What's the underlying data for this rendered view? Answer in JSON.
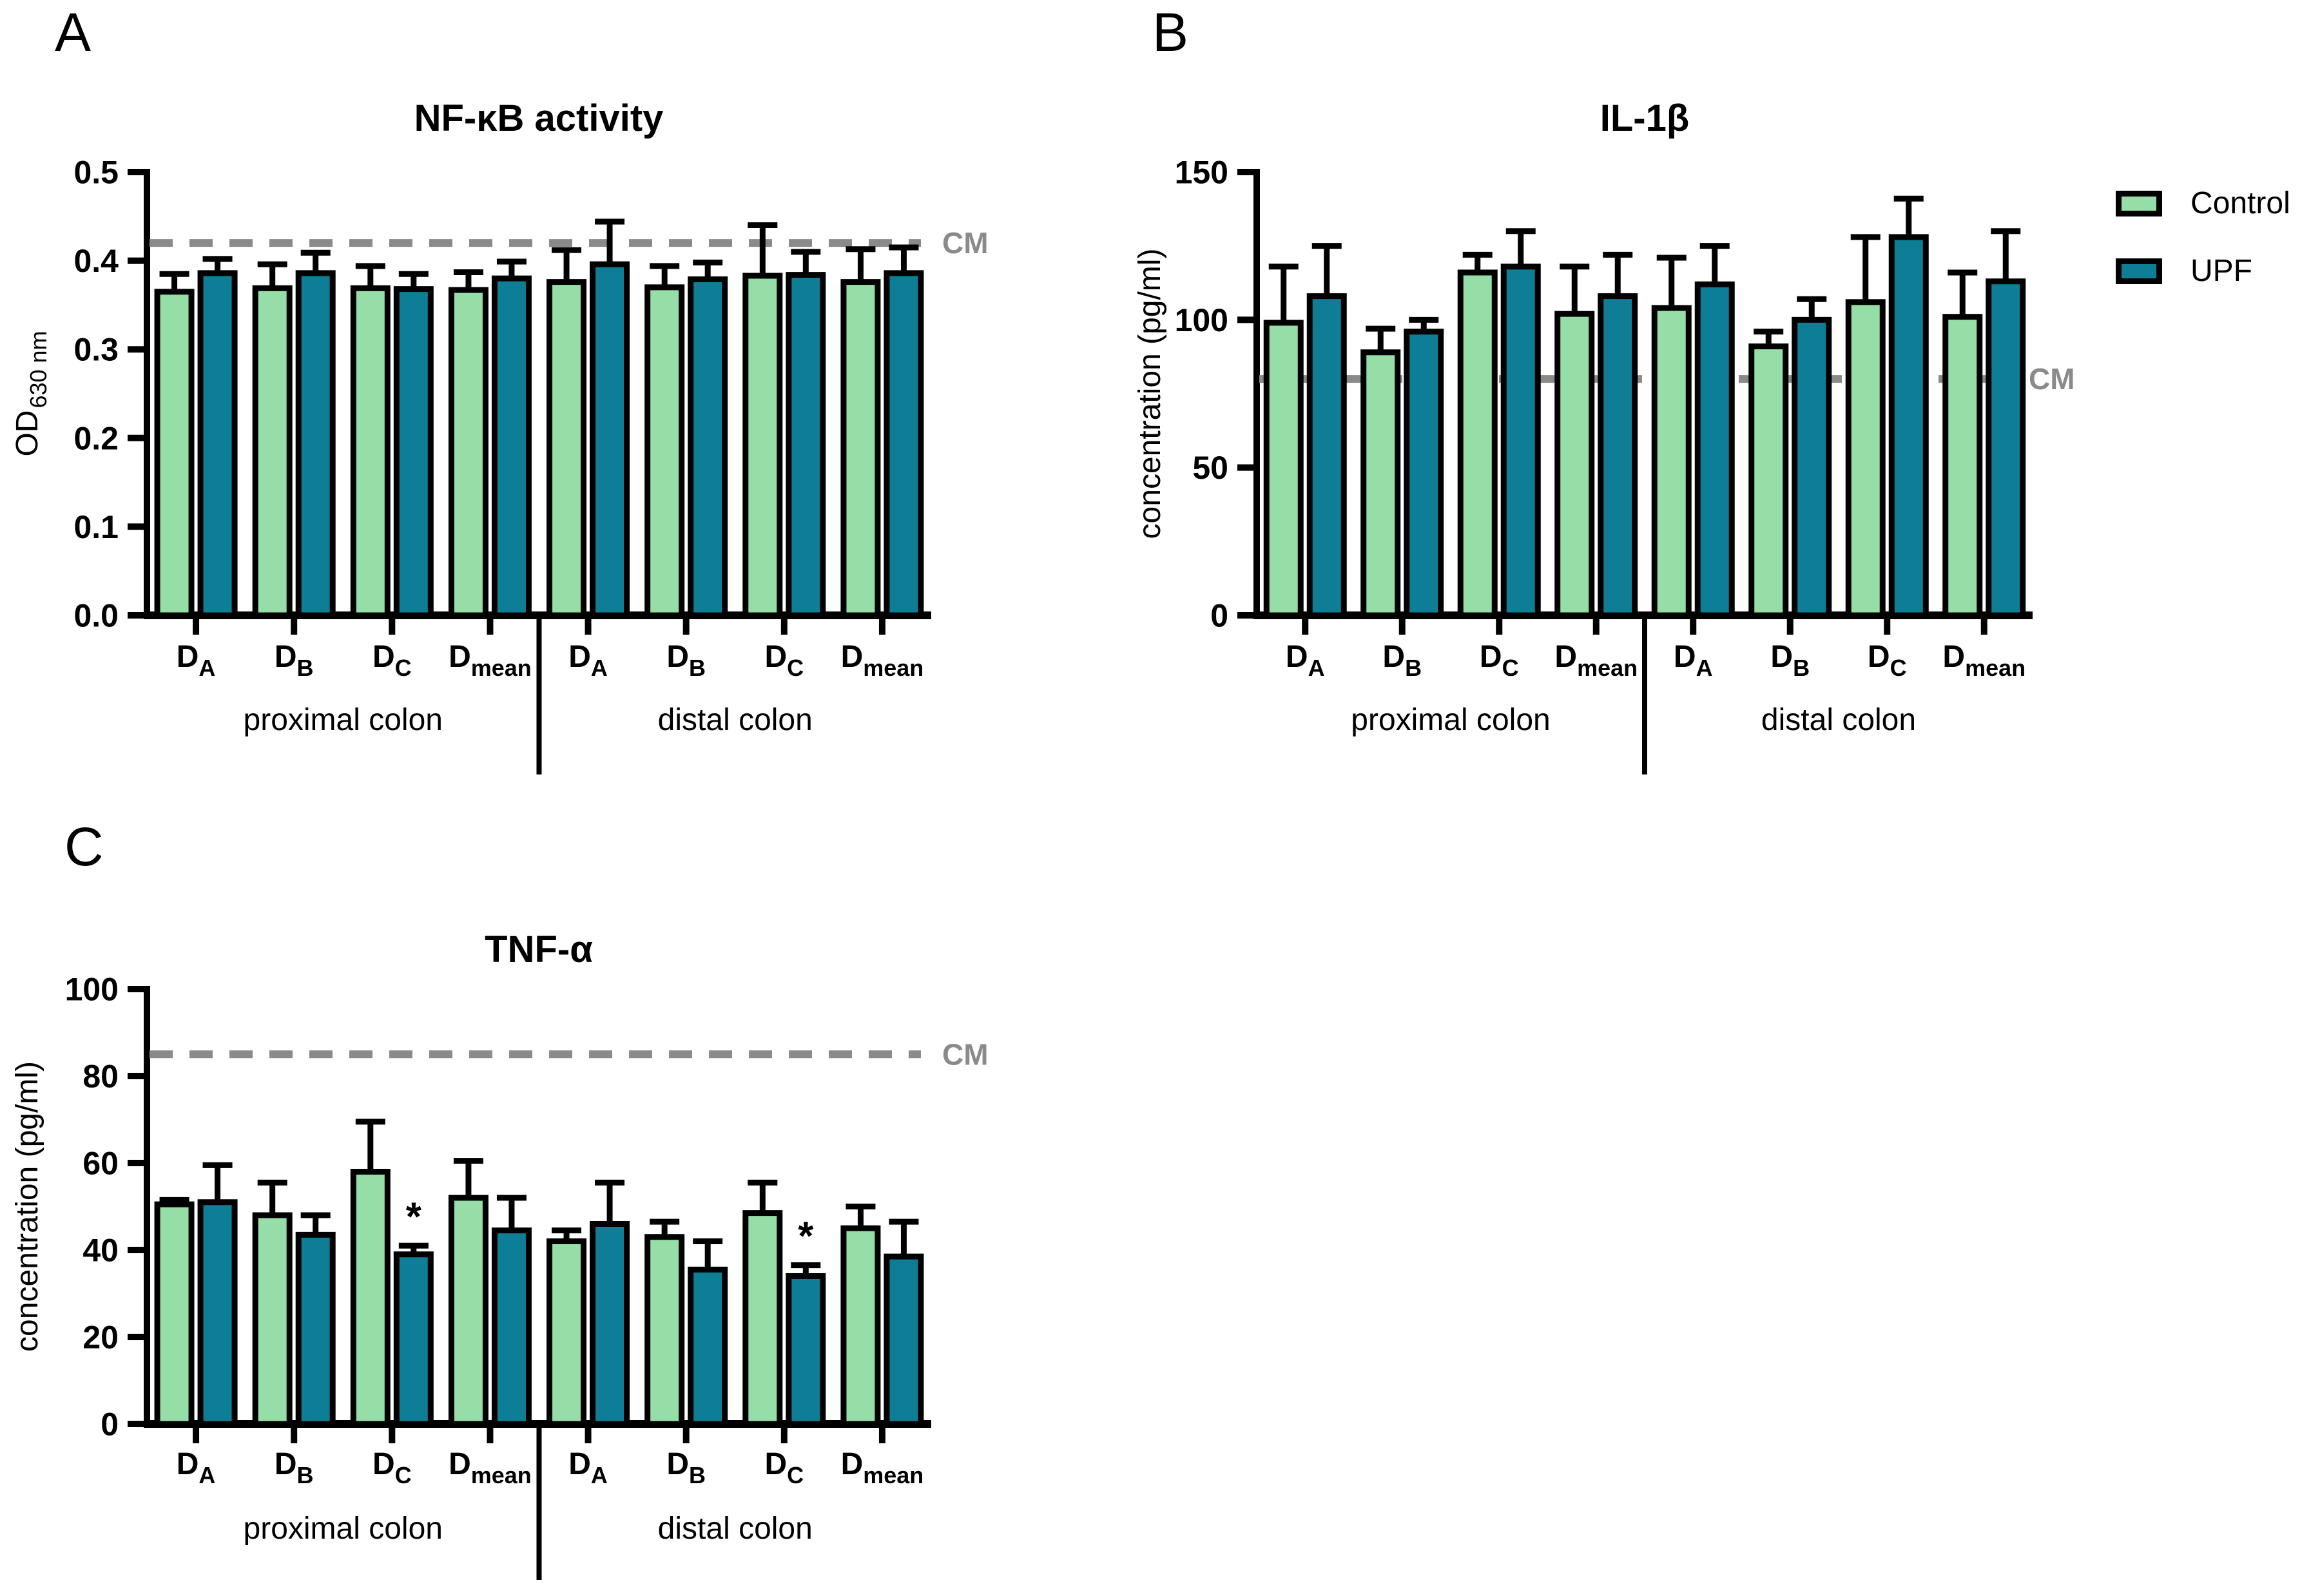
{
  "chart_data": [
    {
      "type": "bar",
      "panel_letter": "A",
      "title": "NF-κB activity",
      "ylabel": {
        "main": "OD",
        "sub": "630 nm"
      },
      "ylim": [
        0,
        0.5
      ],
      "ytick_values": [
        0,
        0.1,
        0.2,
        0.3,
        0.4,
        0.5
      ],
      "ytick_labels": [
        "0.0",
        "0.1",
        "0.2",
        "0.3",
        "0.4",
        "0.5"
      ],
      "categories": [
        {
          "main": "D",
          "sub": "A"
        },
        {
          "main": "D",
          "sub": "B"
        },
        {
          "main": "D",
          "sub": "C"
        },
        {
          "main": "D",
          "sub": "mean"
        },
        {
          "main": "D",
          "sub": "A"
        },
        {
          "main": "D",
          "sub": "B"
        },
        {
          "main": "D",
          "sub": "C"
        },
        {
          "main": "D",
          "sub": "mean"
        }
      ],
      "group_labels": [
        "proximal colon",
        "distal colon"
      ],
      "series": [
        {
          "name": "Control",
          "values": [
            0.365,
            0.369,
            0.369,
            0.367,
            0.376,
            0.37,
            0.383,
            0.376
          ],
          "errors": [
            0.02,
            0.027,
            0.025,
            0.02,
            0.036,
            0.024,
            0.057,
            0.037
          ]
        },
        {
          "name": "UPF",
          "values": [
            0.386,
            0.386,
            0.368,
            0.38,
            0.396,
            0.379,
            0.384,
            0.386
          ],
          "errors": [
            0.016,
            0.023,
            0.017,
            0.019,
            0.048,
            0.019,
            0.026,
            0.029
          ]
        }
      ],
      "reference_line": {
        "label": "CM",
        "value": 0.42
      },
      "significance": [],
      "grid": false
    },
    {
      "type": "bar",
      "panel_letter": "B",
      "title": "IL-1β",
      "ylabel": {
        "main": "concentration (pg/ml)",
        "sub": ""
      },
      "ylim": [
        0,
        150
      ],
      "ytick_values": [
        0,
        50,
        100,
        150
      ],
      "ytick_labels": [
        "0",
        "50",
        "100",
        "150"
      ],
      "categories": [
        {
          "main": "D",
          "sub": "A"
        },
        {
          "main": "D",
          "sub": "B"
        },
        {
          "main": "D",
          "sub": "C"
        },
        {
          "main": "D",
          "sub": "mean"
        },
        {
          "main": "D",
          "sub": "A"
        },
        {
          "main": "D",
          "sub": "B"
        },
        {
          "main": "D",
          "sub": "C"
        },
        {
          "main": "D",
          "sub": "mean"
        }
      ],
      "group_labels": [
        "proximal colon",
        "distal colon"
      ],
      "series": [
        {
          "name": "Control",
          "values": [
            99,
            89,
            116,
            102,
            104,
            91,
            106,
            101
          ],
          "errors": [
            19,
            8,
            6,
            16,
            17,
            5,
            22,
            15
          ]
        },
        {
          "name": "UPF",
          "values": [
            108,
            96,
            118,
            108,
            112,
            100,
            128,
            113
          ],
          "errors": [
            17,
            4,
            12,
            14,
            13,
            7,
            13,
            17
          ]
        }
      ],
      "reference_line": {
        "label": "CM",
        "value": 80
      },
      "significance": [],
      "grid": false
    },
    {
      "type": "bar",
      "panel_letter": "C",
      "title": "TNF-α",
      "ylabel": {
        "main": "concentration (pg/ml)",
        "sub": ""
      },
      "ylim": [
        0,
        100
      ],
      "ytick_values": [
        0,
        20,
        40,
        60,
        80,
        100
      ],
      "ytick_labels": [
        "0",
        "20",
        "40",
        "60",
        "80",
        "100"
      ],
      "categories": [
        {
          "main": "D",
          "sub": "A"
        },
        {
          "main": "D",
          "sub": "B"
        },
        {
          "main": "D",
          "sub": "C"
        },
        {
          "main": "D",
          "sub": "mean"
        },
        {
          "main": "D",
          "sub": "A"
        },
        {
          "main": "D",
          "sub": "B"
        },
        {
          "main": "D",
          "sub": "C"
        },
        {
          "main": "D",
          "sub": "mean"
        }
      ],
      "group_labels": [
        "proximal colon",
        "distal colon"
      ],
      "series": [
        {
          "name": "Control",
          "values": [
            50.5,
            48,
            58,
            52,
            42,
            43,
            48.5,
            45
          ],
          "errors": [
            1,
            7.5,
            11.5,
            8.5,
            2.5,
            3.5,
            7,
            5
          ]
        },
        {
          "name": "UPF",
          "values": [
            51,
            43.5,
            39,
            44.5,
            46,
            35.5,
            34,
            38.5
          ],
          "errors": [
            8.5,
            4.5,
            2,
            7.5,
            9.5,
            6.5,
            2.5,
            8
          ]
        }
      ],
      "reference_line": {
        "label": "CM",
        "value": 85
      },
      "significance": [
        {
          "category_index": 2,
          "series_index": 1,
          "symbol": "*"
        },
        {
          "category_index": 6,
          "series_index": 1,
          "symbol": "*"
        }
      ],
      "grid": false
    }
  ],
  "legend": {
    "position": "top-right",
    "entries": [
      {
        "label": "Control",
        "color": "#96DEA8"
      },
      {
        "label": "UPF",
        "color": "#0D7E96"
      }
    ]
  },
  "colors": {
    "reference_line": "#8A8A8A",
    "bar_outline": "#000000",
    "axis": "#000000",
    "background": "#FFFFFF"
  }
}
